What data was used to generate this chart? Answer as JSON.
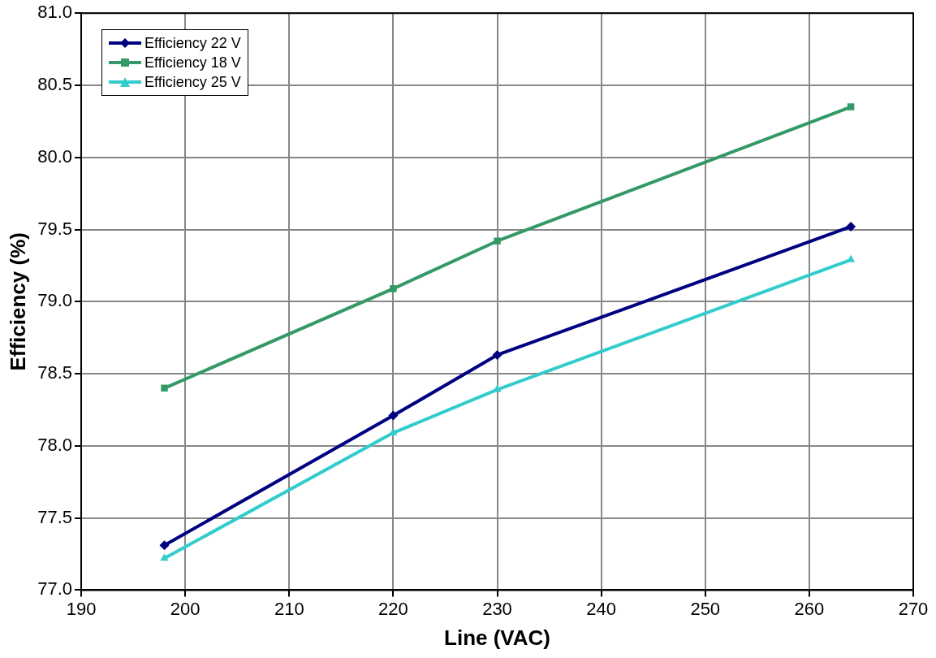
{
  "chart_data": {
    "type": "line",
    "xlabel": "Line (VAC)",
    "ylabel": "Efficiency (%)",
    "x": [
      198,
      220,
      230,
      264
    ],
    "series": [
      {
        "name": "Efficiency 22 V",
        "color": "#000080",
        "marker": "diamond",
        "values": [
          77.31,
          78.21,
          78.63,
          79.52
        ]
      },
      {
        "name": "Efficiency 18 V",
        "color": "#339966",
        "marker": "square",
        "values": [
          78.4,
          79.09,
          79.42,
          80.35
        ]
      },
      {
        "name": "Efficiency 25 V",
        "color": "#33cccc",
        "marker": "triangle",
        "values": [
          77.22,
          78.09,
          78.39,
          79.29
        ]
      }
    ],
    "xlim": [
      190,
      270
    ],
    "xticks": [
      190,
      200,
      210,
      220,
      230,
      240,
      250,
      260,
      270
    ],
    "ylim": [
      77,
      81
    ],
    "yticks": [
      {
        "value": 77,
        "label": "77.0"
      },
      {
        "value": 77.5,
        "label": "77.5"
      },
      {
        "value": 78,
        "label": "78.0"
      },
      {
        "value": 78.5,
        "label": "78.5"
      },
      {
        "value": 79,
        "label": "79.0"
      },
      {
        "value": 79.5,
        "label": "79.5"
      },
      {
        "value": 80,
        "label": "80.0"
      },
      {
        "value": 80.5,
        "label": "80.5"
      },
      {
        "value": 81,
        "label": "81.0"
      }
    ],
    "grid": true,
    "legend": "top left",
    "line_style": "solid"
  }
}
